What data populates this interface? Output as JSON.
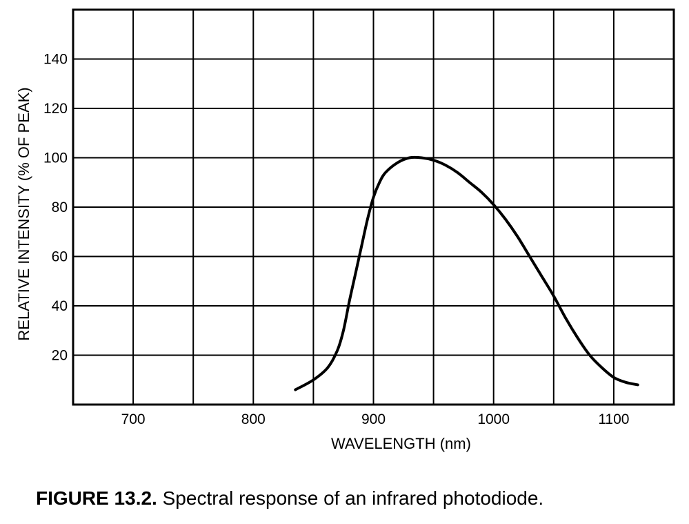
{
  "chart_data": {
    "type": "line",
    "xlabel": "WAVELENGTH (nm)",
    "ylabel": "RELATIVE INTENSITY (% OF PEAK)",
    "xlim": [
      650,
      1150
    ],
    "ylim": [
      0,
      160
    ],
    "x_ticks": [
      700,
      800,
      900,
      1000,
      1100
    ],
    "y_ticks": [
      20,
      40,
      60,
      80,
      100,
      120,
      140
    ],
    "grid": true,
    "series": [
      {
        "points": [
          [
            835,
            6
          ],
          [
            850,
            10
          ],
          [
            862,
            15
          ],
          [
            870,
            22
          ],
          [
            875,
            30
          ],
          [
            880,
            42
          ],
          [
            885,
            53
          ],
          [
            890,
            64
          ],
          [
            895,
            75
          ],
          [
            900,
            84
          ],
          [
            905,
            90
          ],
          [
            910,
            94
          ],
          [
            920,
            98
          ],
          [
            930,
            100
          ],
          [
            940,
            100
          ],
          [
            950,
            99
          ],
          [
            960,
            97
          ],
          [
            970,
            94
          ],
          [
            980,
            90
          ],
          [
            990,
            86
          ],
          [
            1000,
            81
          ],
          [
            1010,
            75
          ],
          [
            1020,
            68
          ],
          [
            1030,
            60
          ],
          [
            1040,
            52
          ],
          [
            1050,
            44
          ],
          [
            1060,
            35
          ],
          [
            1070,
            27
          ],
          [
            1080,
            20
          ],
          [
            1090,
            15
          ],
          [
            1100,
            11
          ],
          [
            1110,
            9
          ],
          [
            1120,
            8
          ]
        ]
      }
    ]
  },
  "caption": {
    "figure_number": "FIGURE 13.2.",
    "text": "Spectral response of an infrared photodiode."
  },
  "colors": {
    "line": "#000000",
    "grid": "#000000",
    "background": "#ffffff"
  }
}
